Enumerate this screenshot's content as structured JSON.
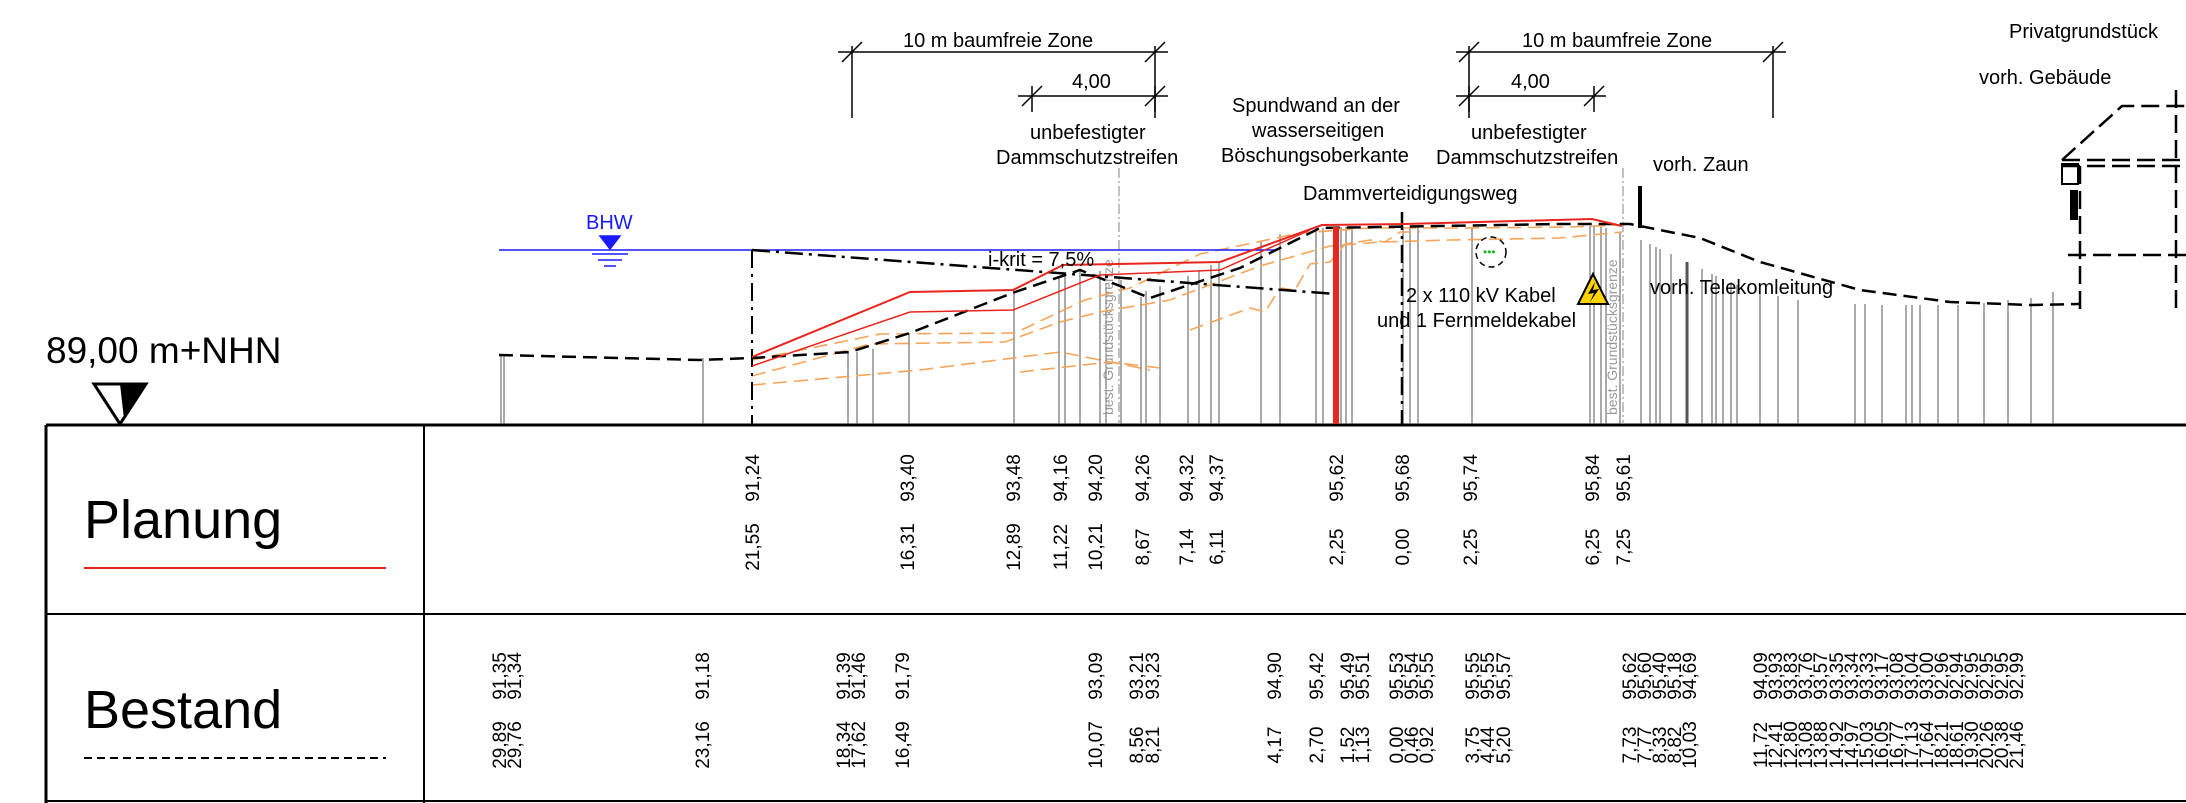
{
  "drawing": {
    "reference_level": "89,00 m+NHN",
    "water_label": "BHW",
    "slope_label": "i-krit = 7,5%",
    "zones": [
      {
        "title": "10 m baumfreie Zone",
        "sub_dim": "4,00",
        "sub_label_1": "unbefestigter",
        "sub_label_2": "Dammschutzstreifen"
      },
      {
        "title": "10 m baumfreie Zone",
        "sub_dim": "4,00",
        "sub_label_1": "unbefestigter",
        "sub_label_2": "Dammschutzstreifen"
      }
    ],
    "sheetpile_label_1": "Spundwand an der",
    "sheetpile_label_2": "wasserseitigen",
    "sheetpile_label_3": "Böschungsoberkante",
    "defense_path": "Dammverteidigungsweg",
    "fence": "vorh. Zaun",
    "telecom": "vorh. Telekomleitung",
    "cable_1": "2 x 110 kV Kabel",
    "cable_2": "und 1 Fernmeldekabel",
    "property_line": "best. Grundstücksgrenze",
    "private_property": "Privatgrundstück",
    "building": "vorh. Gebäude",
    "colors": {
      "planned": "#e8261f",
      "water": "#1a1aff",
      "orange": "#f5a55a",
      "grey": "#999999"
    }
  },
  "table": {
    "planung": {
      "label": "Planung",
      "heights": [
        "91,24",
        "93,40",
        "93,48",
        "94,16",
        "94,20",
        "94,26",
        "94,32",
        "94,37",
        "95,62",
        "95,68",
        "95,74",
        "95,84",
        "95,61"
      ],
      "distances": [
        "21,55",
        "16,31",
        "12,89",
        "11,22",
        "10,21",
        "8,67",
        "7,14",
        "6,11",
        "2,25",
        "0,00",
        "2,25",
        "6,25",
        "7,25"
      ]
    },
    "bestand": {
      "label": "Bestand",
      "heights": [
        "91,35",
        "91,34",
        "91,18",
        "91,39",
        "91,46",
        "91,79",
        "93,09",
        "93,21",
        "93,23",
        "94,90",
        "95,42",
        "95,49",
        "95,51",
        "95,53",
        "95,54",
        "95,55",
        "95,55",
        "95,55",
        "95,57",
        "95,62",
        "95,60",
        "95,40",
        "95,18",
        "94,69",
        "94,09",
        "93,93",
        "93,83",
        "93,76",
        "93,57",
        "93,35",
        "93,34",
        "93,33",
        "93,17",
        "93,08",
        "93,04",
        "93,00",
        "92,96",
        "92,94",
        "92,95",
        "92,95",
        "92,95",
        "92,99"
      ],
      "distances": [
        "29,89",
        "29,76",
        "23,16",
        "18,34",
        "17,62",
        "16,49",
        "10,07",
        "8,56",
        "8,21",
        "4,17",
        "2,70",
        "1,52",
        "1,13",
        "0,00",
        "0,46",
        "0,92",
        "3,75",
        "4,44",
        "5,20",
        "7,73",
        "7,77",
        "8,33",
        "8,82",
        "10,03",
        "11,72",
        "12,41",
        "12,80",
        "13,08",
        "13,88",
        "14,92",
        "14,97",
        "15,03",
        "16,05",
        "16,77",
        "17,13",
        "17,64",
        "18,21",
        "18,61",
        "19,30",
        "20,26",
        "20,38",
        "21,46"
      ]
    }
  }
}
